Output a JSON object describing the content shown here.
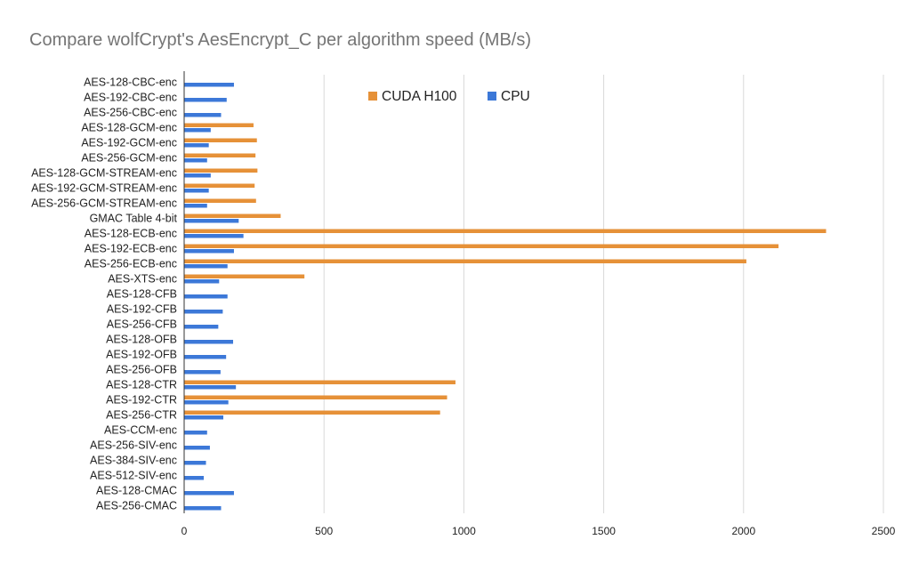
{
  "chart_data": {
    "type": "bar",
    "orientation": "horizontal",
    "title": "Compare wolfCrypt's AesEncrypt_C per algorithm speed (MB/s)",
    "categories": [
      "AES-128-CBC-enc",
      "AES-192-CBC-enc",
      "AES-256-CBC-enc",
      "AES-128-GCM-enc",
      "AES-192-GCM-enc",
      "AES-256-GCM-enc",
      "AES-128-GCM-STREAM-enc",
      "AES-192-GCM-STREAM-enc",
      "AES-256-GCM-STREAM-enc",
      "GMAC Table 4-bit",
      "AES-128-ECB-enc",
      "AES-192-ECB-enc",
      "AES-256-ECB-enc",
      "AES-XTS-enc",
      "AES-128-CFB",
      "AES-192-CFB",
      "AES-256-CFB",
      "AES-128-OFB",
      "AES-192-OFB",
      "AES-256-OFB",
      "AES-128-CTR",
      "AES-192-CTR",
      "AES-256-CTR",
      "AES-CCM-enc",
      "AES-256-SIV-enc",
      "AES-384-SIV-enc",
      "AES-512-SIV-enc",
      "AES-128-CMAC",
      "AES-256-CMAC"
    ],
    "series": [
      {
        "name": "CUDA H100",
        "color": "#e69138",
        "values": [
          0,
          0,
          0,
          248,
          260,
          255,
          262,
          252,
          257,
          345,
          2295,
          2125,
          2010,
          430,
          0,
          0,
          0,
          0,
          0,
          0,
          970,
          940,
          915,
          0,
          0,
          0,
          0,
          0,
          0
        ]
      },
      {
        "name": "CPU",
        "color": "#3c78d8",
        "values": [
          178,
          152,
          132,
          95,
          88,
          82,
          95,
          88,
          82,
          195,
          212,
          178,
          155,
          125,
          155,
          138,
          122,
          175,
          150,
          130,
          185,
          158,
          140,
          82,
          92,
          78,
          70,
          178,
          132
        ]
      }
    ],
    "xlim": [
      0,
      2500
    ],
    "xticks": [
      "0",
      "500",
      "1000",
      "1500",
      "2000",
      "2500"
    ],
    "grid": "vertical",
    "legend_position": "top-center"
  }
}
